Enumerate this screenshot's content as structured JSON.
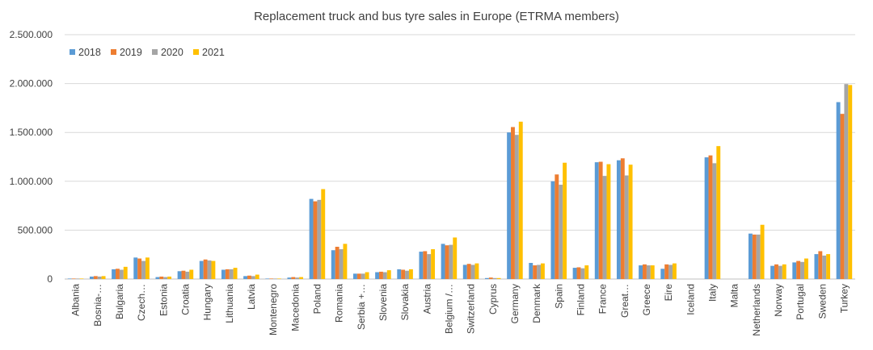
{
  "chart_data": {
    "type": "bar",
    "title": "Replacement truck and bus tyre sales in Europe (ETRMA members)",
    "xlabel": "",
    "ylabel": "",
    "ylim": [
      0,
      2500000
    ],
    "yticks": [
      "0",
      "500.000",
      "1.000.000",
      "1.500.000",
      "2.000.000",
      "2.500.000"
    ],
    "grid": "horizontal",
    "legend_position": "top-left",
    "categories": [
      "Albania",
      "Bosnia-…",
      "Bulgaria",
      "Czech…",
      "Estonia",
      "Croatia",
      "Hungary",
      "Lithuania",
      "Latvia",
      "Montenegro",
      "Macedonia",
      "Poland",
      "Romania",
      "Serbia +…",
      "Slovenia",
      "Slovakia",
      "Austria",
      "Belgium /…",
      "Switzerland",
      "Cyprus",
      "Germany",
      "Denmark",
      "Spain",
      "Finland",
      "France",
      "Great…",
      "Greece",
      "Eire",
      "Iceland",
      "Italy",
      "Malta",
      "Netherlands",
      "Norway",
      "Portugal",
      "Sweden",
      "Turkey"
    ],
    "series": [
      {
        "name": "2018",
        "color": "#5B9BD5",
        "values": [
          5000,
          25000,
          100000,
          220000,
          20000,
          80000,
          185000,
          95000,
          30000,
          5000,
          15000,
          820000,
          295000,
          55000,
          70000,
          100000,
          280000,
          360000,
          145000,
          10000,
          1500000,
          165000,
          1000000,
          115000,
          1195000,
          1215000,
          140000,
          105000,
          0,
          1245000,
          0,
          465000,
          135000,
          170000,
          255000,
          1810000
        ]
      },
      {
        "name": "2019",
        "color": "#ED7D31",
        "values": [
          5000,
          30000,
          105000,
          210000,
          25000,
          85000,
          200000,
          100000,
          35000,
          5000,
          20000,
          795000,
          330000,
          55000,
          75000,
          95000,
          285000,
          345000,
          155000,
          15000,
          1555000,
          140000,
          1070000,
          120000,
          1200000,
          1235000,
          150000,
          150000,
          0,
          1265000,
          0,
          455000,
          150000,
          185000,
          285000,
          1690000
        ]
      },
      {
        "name": "2020",
        "color": "#A5A5A5",
        "values": [
          5000,
          25000,
          95000,
          185000,
          20000,
          75000,
          190000,
          100000,
          30000,
          5000,
          15000,
          810000,
          305000,
          55000,
          70000,
          85000,
          255000,
          350000,
          145000,
          10000,
          1475000,
          145000,
          965000,
          110000,
          1055000,
          1060000,
          140000,
          145000,
          0,
          1185000,
          0,
          455000,
          135000,
          175000,
          240000,
          1995000
        ]
      },
      {
        "name": "2021",
        "color": "#FFC000",
        "values": [
          5000,
          30000,
          125000,
          220000,
          25000,
          95000,
          185000,
          115000,
          45000,
          5000,
          20000,
          920000,
          360000,
          70000,
          90000,
          100000,
          305000,
          425000,
          160000,
          10000,
          1610000,
          160000,
          1190000,
          140000,
          1175000,
          1170000,
          140000,
          160000,
          0,
          1360000,
          0,
          555000,
          150000,
          210000,
          255000,
          1985000
        ]
      }
    ]
  }
}
